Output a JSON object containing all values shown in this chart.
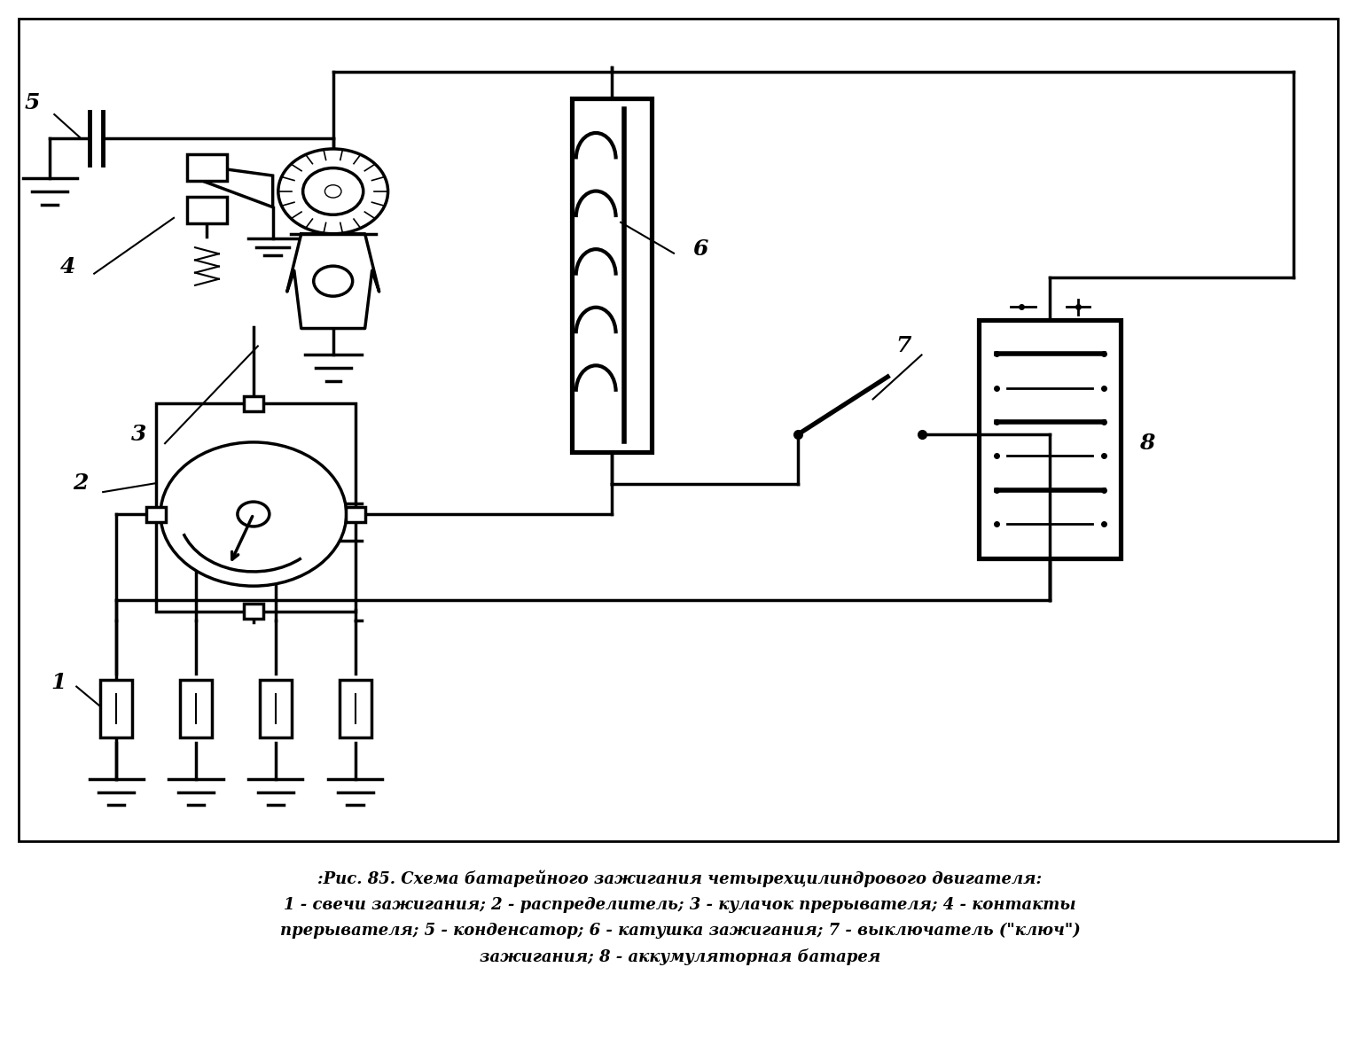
{
  "background_color": "#ffffff",
  "line_color": "#000000",
  "lw": 2.5,
  "fig_width": 15.34,
  "fig_height": 11.88,
  "caption_line1": ":Рис. 85. Схема батарейного зажигания четырехцилиндрового двигателя:",
  "caption_line2": "1 - свечи зажигания; 2 - распределитель; 3 - кулачок прерывателя; 4 - контакты",
  "caption_line3": "прерывателя; 5 - конденсатор; 6 - катушка зажигания; 7 - выключатель (\"ключ\")",
  "caption_line4": "зажигания; 8 - аккумуляторная батарея"
}
